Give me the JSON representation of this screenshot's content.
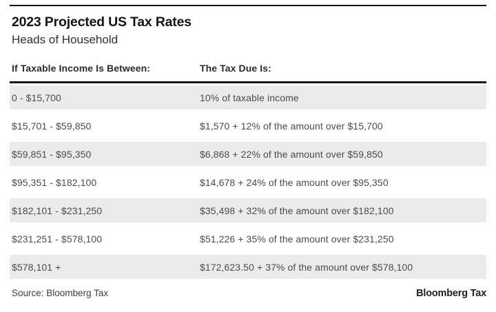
{
  "chart_data": {
    "type": "table",
    "title": "2023 Projected US Tax Rates",
    "subtitle": "Heads of Household",
    "columns": [
      "If Taxable Income Is Between:",
      "The Tax Due Is:"
    ],
    "rows": [
      {
        "income": "0 - $15,700",
        "tax": "10% of taxable income"
      },
      {
        "income": "$15,701 - $59,850",
        "tax": "$1,570 + 12% of the amount over $15,700"
      },
      {
        "income": "$59,851 - $95,350",
        "tax": "$6,868 + 22% of the amount over $59,850"
      },
      {
        "income": "$95,351 - $182,100",
        "tax": "$14,678 + 24% of the amount over $95,350"
      },
      {
        "income": "$182,101 - $231,250",
        "tax": "$35,498 + 32% of the amount over $182,100"
      },
      {
        "income": "$231,251 - $578,100",
        "tax": "$51,226 + 35% of the amount over $231,250"
      },
      {
        "income": "$578,101 +",
        "tax": "$172,623.50 + 37% of the amount over $578,100"
      }
    ],
    "source": "Source: Bloomberg Tax",
    "layout": {
      "striped_rows": "odd",
      "legend": "none",
      "grid": "off"
    }
  },
  "footer": {
    "source_label": "Source: Bloomberg Tax",
    "brand": "Bloomberg Tax"
  },
  "colors": {
    "stripe_background": "#ebebeb",
    "rule_black": "#161616",
    "title_text": "#141414",
    "body_text": "#4a4a4a",
    "header_text": "#2b2b2b"
  }
}
